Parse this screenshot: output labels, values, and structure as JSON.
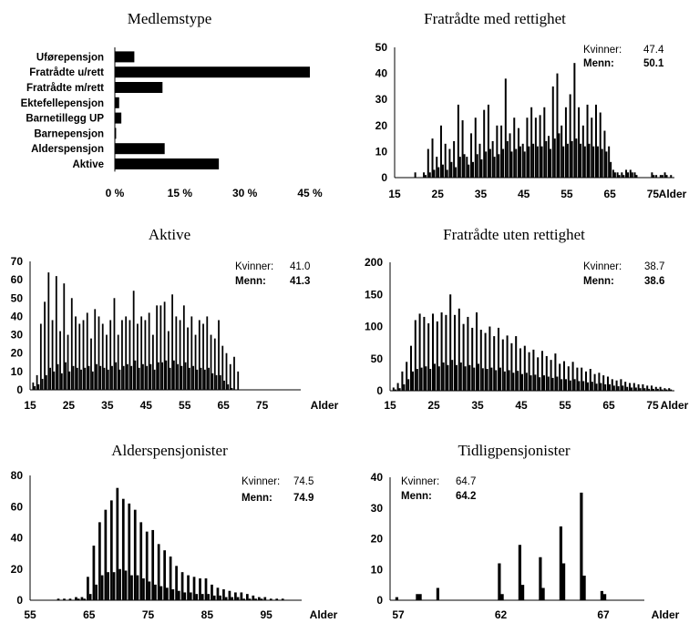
{
  "chart_data": [
    {
      "type": "bar",
      "orientation": "horizontal",
      "title": "Medlemstype",
      "categories": [
        "Uførepensjon",
        "Fratrådte u/rett",
        "Fratrådte m/rett",
        "Ektefellepensjon",
        "Barnetillegg UP",
        "Barnepensjon",
        "Alderspensjon",
        "Aktive"
      ],
      "values": [
        4.5,
        45,
        11,
        1.0,
        1.5,
        0.3,
        11.5,
        24
      ],
      "xticks": [
        "0 %",
        "15 %",
        "30 %",
        "45 %"
      ],
      "xlim": [
        0,
        45
      ],
      "unit": "%"
    },
    {
      "type": "bar",
      "title": "Fratrådte med rettighet",
      "xlabel": "Alder",
      "xlim": [
        15,
        80
      ],
      "ylim": [
        0,
        50
      ],
      "xticks": [
        15,
        25,
        35,
        45,
        55,
        65,
        75
      ],
      "yticks": [
        0,
        10,
        20,
        30,
        40,
        50
      ],
      "averages": {
        "kvinner_label": "Kvinner:",
        "kvinner": "47.4",
        "menn_label": "Menn:",
        "menn": "50.1"
      },
      "series": [
        {
          "name": "Kvinner",
          "x": [
            20,
            21,
            22,
            23,
            24,
            25,
            26,
            27,
            28,
            29,
            30,
            31,
            32,
            33,
            34,
            35,
            36,
            37,
            38,
            39,
            40,
            41,
            42,
            43,
            44,
            45,
            46,
            47,
            48,
            49,
            50,
            51,
            52,
            53,
            54,
            55,
            56,
            57,
            58,
            59,
            60,
            61,
            62,
            63,
            64,
            65,
            66,
            67,
            68,
            69,
            70,
            71,
            72,
            73,
            74,
            75,
            76,
            77,
            78,
            79
          ],
          "values": [
            2,
            0,
            2,
            11,
            15,
            8,
            20,
            13,
            11,
            14,
            28,
            22,
            8,
            17,
            23,
            13,
            26,
            28,
            14,
            20,
            20,
            38,
            17,
            23,
            19,
            13,
            23,
            27,
            23,
            24,
            27,
            16,
            35,
            40,
            20,
            27,
            32,
            44,
            27,
            20,
            28,
            23,
            28,
            25,
            18,
            12,
            3,
            2,
            2,
            3,
            3,
            2,
            0,
            0,
            0,
            2,
            1,
            1,
            2,
            0
          ]
        },
        {
          "name": "Menn",
          "x": [
            20,
            21,
            22,
            23,
            24,
            25,
            26,
            27,
            28,
            29,
            30,
            31,
            32,
            33,
            34,
            35,
            36,
            37,
            38,
            39,
            40,
            41,
            42,
            43,
            44,
            45,
            46,
            47,
            48,
            49,
            50,
            51,
            52,
            53,
            54,
            55,
            56,
            57,
            58,
            59,
            60,
            61,
            62,
            63,
            64,
            65,
            66,
            67,
            68,
            69,
            70,
            71,
            72,
            73,
            74,
            75,
            76,
            77,
            78,
            79
          ],
          "values": [
            0,
            0,
            1,
            2,
            3,
            4,
            5,
            3,
            6,
            4,
            8,
            9,
            5,
            6,
            9,
            7,
            10,
            11,
            8,
            9,
            11,
            14,
            10,
            11,
            12,
            10,
            12,
            13,
            12,
            12,
            14,
            11,
            15,
            17,
            12,
            13,
            14,
            15,
            13,
            12,
            13,
            12,
            12,
            11,
            10,
            6,
            2,
            1,
            1,
            2,
            2,
            1,
            0,
            0,
            0,
            1,
            0,
            1,
            1,
            1
          ]
        }
      ]
    },
    {
      "type": "bar",
      "title": "Aktive",
      "xlabel": "Alder",
      "xlim": [
        15,
        85
      ],
      "ylim": [
        0,
        70
      ],
      "xticks": [
        15,
        25,
        35,
        45,
        55,
        65,
        75
      ],
      "yticks": [
        0,
        10,
        20,
        30,
        40,
        50,
        60,
        70
      ],
      "averages": {
        "kvinner_label": "Kvinner:",
        "kvinner": "41.0",
        "menn_label": "Menn:",
        "menn": "41.3"
      },
      "series": [
        {
          "name": "Kvinner",
          "x": [
            16,
            17,
            18,
            19,
            20,
            21,
            22,
            23,
            24,
            25,
            26,
            27,
            28,
            29,
            30,
            31,
            32,
            33,
            34,
            35,
            36,
            37,
            38,
            39,
            40,
            41,
            42,
            43,
            44,
            45,
            46,
            47,
            48,
            49,
            50,
            51,
            52,
            53,
            54,
            55,
            56,
            57,
            58,
            59,
            60,
            61,
            62,
            63,
            64,
            65,
            66,
            67,
            68,
            69
          ],
          "values": [
            4,
            8,
            36,
            48,
            64,
            38,
            62,
            32,
            58,
            30,
            50,
            40,
            36,
            38,
            42,
            28,
            44,
            40,
            36,
            30,
            38,
            50,
            30,
            38,
            40,
            38,
            54,
            36,
            40,
            38,
            42,
            30,
            46,
            46,
            48,
            32,
            52,
            40,
            38,
            46,
            34,
            40,
            30,
            38,
            36,
            40,
            30,
            28,
            38,
            24,
            20,
            14,
            18,
            10
          ]
        },
        {
          "name": "Menn",
          "x": [
            16,
            17,
            18,
            19,
            20,
            21,
            22,
            23,
            24,
            25,
            26,
            27,
            28,
            29,
            30,
            31,
            32,
            33,
            34,
            35,
            36,
            37,
            38,
            39,
            40,
            41,
            42,
            43,
            44,
            45,
            46,
            47,
            48,
            49,
            50,
            51,
            52,
            53,
            54,
            55,
            56,
            57,
            58,
            59,
            60,
            61,
            62,
            63,
            64,
            65,
            66,
            67,
            68,
            69
          ],
          "values": [
            2,
            3,
            6,
            8,
            12,
            10,
            14,
            9,
            15,
            10,
            13,
            12,
            11,
            12,
            13,
            10,
            14,
            13,
            12,
            11,
            13,
            15,
            11,
            13,
            14,
            13,
            16,
            12,
            14,
            13,
            14,
            11,
            15,
            15,
            16,
            12,
            16,
            14,
            13,
            15,
            12,
            13,
            11,
            12,
            11,
            12,
            9,
            8,
            8,
            5,
            3,
            1,
            0,
            0
          ]
        }
      ]
    },
    {
      "type": "bar",
      "title": "Fratrådte uten rettighet",
      "xlabel": "Alder",
      "xlim": [
        15,
        80
      ],
      "ylim": [
        0,
        200
      ],
      "xticks": [
        15,
        25,
        35,
        45,
        55,
        65,
        75
      ],
      "yticks": [
        0,
        50,
        100,
        150,
        200
      ],
      "averages": {
        "kvinner_label": "Kvinner:",
        "kvinner": "38.7",
        "menn_label": "Menn:",
        "menn": "38.6"
      },
      "series": [
        {
          "name": "Kvinner",
          "x": [
            16,
            17,
            18,
            19,
            20,
            21,
            22,
            23,
            24,
            25,
            26,
            27,
            28,
            29,
            30,
            31,
            32,
            33,
            34,
            35,
            36,
            37,
            38,
            39,
            40,
            41,
            42,
            43,
            44,
            45,
            46,
            47,
            48,
            49,
            50,
            51,
            52,
            53,
            54,
            55,
            56,
            57,
            58,
            59,
            60,
            61,
            62,
            63,
            64,
            65,
            66,
            67,
            68,
            69,
            70,
            71,
            72,
            73,
            74,
            75,
            76,
            77,
            78,
            79
          ],
          "values": [
            5,
            12,
            30,
            45,
            70,
            110,
            120,
            115,
            105,
            120,
            108,
            122,
            118,
            150,
            118,
            128,
            104,
            115,
            98,
            122,
            95,
            90,
            100,
            85,
            98,
            80,
            86,
            74,
            85,
            66,
            70,
            60,
            64,
            52,
            62,
            54,
            48,
            58,
            42,
            46,
            38,
            45,
            36,
            36,
            30,
            34,
            26,
            28,
            24,
            22,
            18,
            16,
            18,
            14,
            12,
            12,
            10,
            10,
            8,
            8,
            6,
            6,
            4,
            4
          ]
        },
        {
          "name": "Menn",
          "x": [
            16,
            17,
            18,
            19,
            20,
            21,
            22,
            23,
            24,
            25,
            26,
            27,
            28,
            29,
            30,
            31,
            32,
            33,
            34,
            35,
            36,
            37,
            38,
            39,
            40,
            41,
            42,
            43,
            44,
            45,
            46,
            47,
            48,
            49,
            50,
            51,
            52,
            53,
            54,
            55,
            56,
            57,
            58,
            59,
            60,
            61,
            62,
            63,
            64,
            65,
            66,
            67,
            68,
            69,
            70,
            71,
            72,
            73,
            74,
            75,
            76,
            77,
            78,
            79
          ],
          "values": [
            2,
            4,
            10,
            18,
            30,
            34,
            36,
            38,
            34,
            42,
            38,
            44,
            40,
            48,
            40,
            44,
            38,
            40,
            36,
            42,
            35,
            34,
            36,
            32,
            36,
            30,
            32,
            28,
            31,
            26,
            28,
            24,
            25,
            21,
            24,
            22,
            20,
            22,
            18,
            18,
            16,
            18,
            15,
            15,
            13,
            14,
            11,
            12,
            10,
            10,
            8,
            7,
            8,
            6,
            5,
            5,
            4,
            4,
            3,
            3,
            3,
            2,
            2,
            2
          ]
        }
      ]
    },
    {
      "type": "bar",
      "title": "Alderspensjonister",
      "xlabel": "Alder",
      "xlim": [
        55,
        101
      ],
      "ylim": [
        0,
        80
      ],
      "xticks": [
        55,
        65,
        75,
        85,
        95
      ],
      "yticks": [
        0,
        20,
        40,
        60,
        80
      ],
      "averages": {
        "kvinner_label": "Kvinner:",
        "kvinner": "74.5",
        "menn_label": "Menn:",
        "menn": "74.9"
      },
      "series": [
        {
          "name": "Kvinner",
          "x": [
            60,
            61,
            62,
            63,
            64,
            65,
            66,
            67,
            68,
            69,
            70,
            71,
            72,
            73,
            74,
            75,
            76,
            77,
            78,
            79,
            80,
            81,
            82,
            83,
            84,
            85,
            86,
            87,
            88,
            89,
            90,
            91,
            92,
            93,
            94,
            95,
            96,
            97,
            98
          ],
          "values": [
            1,
            1,
            1,
            2,
            2,
            15,
            35,
            50,
            58,
            64,
            72,
            65,
            62,
            58,
            50,
            44,
            45,
            36,
            32,
            28,
            22,
            18,
            16,
            15,
            14,
            14,
            10,
            8,
            7,
            6,
            5,
            5,
            4,
            3,
            2,
            2,
            1,
            1,
            1
          ]
        },
        {
          "name": "Menn",
          "x": [
            60,
            61,
            62,
            63,
            64,
            65,
            66,
            67,
            68,
            69,
            70,
            71,
            72,
            73,
            74,
            75,
            76,
            77,
            78,
            79,
            80,
            81,
            82,
            83,
            84,
            85,
            86,
            87,
            88,
            89,
            90,
            91,
            92,
            93,
            94,
            95,
            96,
            97,
            98
          ],
          "values": [
            0,
            0,
            0,
            1,
            1,
            4,
            10,
            16,
            18,
            18,
            20,
            19,
            16,
            16,
            14,
            12,
            10,
            9,
            8,
            7,
            6,
            5,
            5,
            4,
            4,
            4,
            3,
            3,
            2,
            2,
            2,
            1,
            1,
            1,
            1,
            0,
            0,
            0,
            0
          ]
        }
      ]
    },
    {
      "type": "bar",
      "title": "Tidligpensjonister",
      "xlabel": "Alder",
      "xlim": [
        56.6,
        69
      ],
      "ylim": [
        0,
        40
      ],
      "xticks": [
        57,
        62,
        67
      ],
      "yticks": [
        0,
        10,
        20,
        30,
        40
      ],
      "averages": {
        "kvinner_label": "Kvinner:",
        "kvinner": "64.7",
        "menn_label": "Menn:",
        "menn": "64.2"
      },
      "series": [
        {
          "name": "Kvinner",
          "x": [
            57,
            58,
            59,
            62,
            63,
            64,
            65,
            66,
            67
          ],
          "values": [
            1,
            2,
            4,
            12,
            18,
            14,
            24,
            35,
            3
          ]
        },
        {
          "name": "Menn",
          "x": [
            57,
            58,
            59,
            62,
            63,
            64,
            65,
            66,
            67
          ],
          "values": [
            0,
            2,
            0,
            2,
            5,
            4,
            12,
            8,
            2
          ]
        }
      ]
    }
  ]
}
